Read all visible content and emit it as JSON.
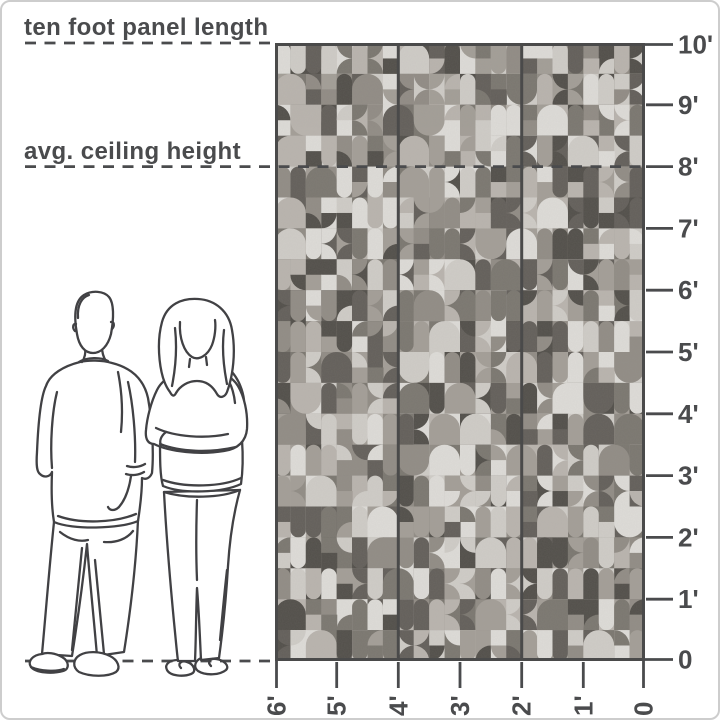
{
  "diagram": {
    "annotations": {
      "panel_length": "ten foot panel length",
      "ceiling_height": "avg. ceiling height"
    },
    "dimensions": {
      "panel_length_feet": 10,
      "avg_ceiling_height_feet": 8,
      "panel_count": 3,
      "wall_width_feet": 6
    },
    "scales": {
      "vertical_labels": [
        "10'",
        "9'",
        "8'",
        "7'",
        "6'",
        "5'",
        "4'",
        "3'",
        "2'",
        "1'",
        "0"
      ],
      "horizontal_labels": [
        "6'",
        "5'",
        "4'",
        "3'",
        "2'",
        "1'",
        "0"
      ]
    },
    "colors": {
      "line": "#4a4b4d",
      "text": "#4a4b4d",
      "figure_line": "#414144",
      "panel_border": "#4a4a4a",
      "frame_border": "#cdcdcd"
    },
    "panel": {
      "pattern_palette": [
        "#dedcd8",
        "#cfccc7",
        "#b9b4ae",
        "#a39e97",
        "#918c85",
        "#7b7770",
        "#635f5a",
        "#524f4a"
      ]
    }
  }
}
